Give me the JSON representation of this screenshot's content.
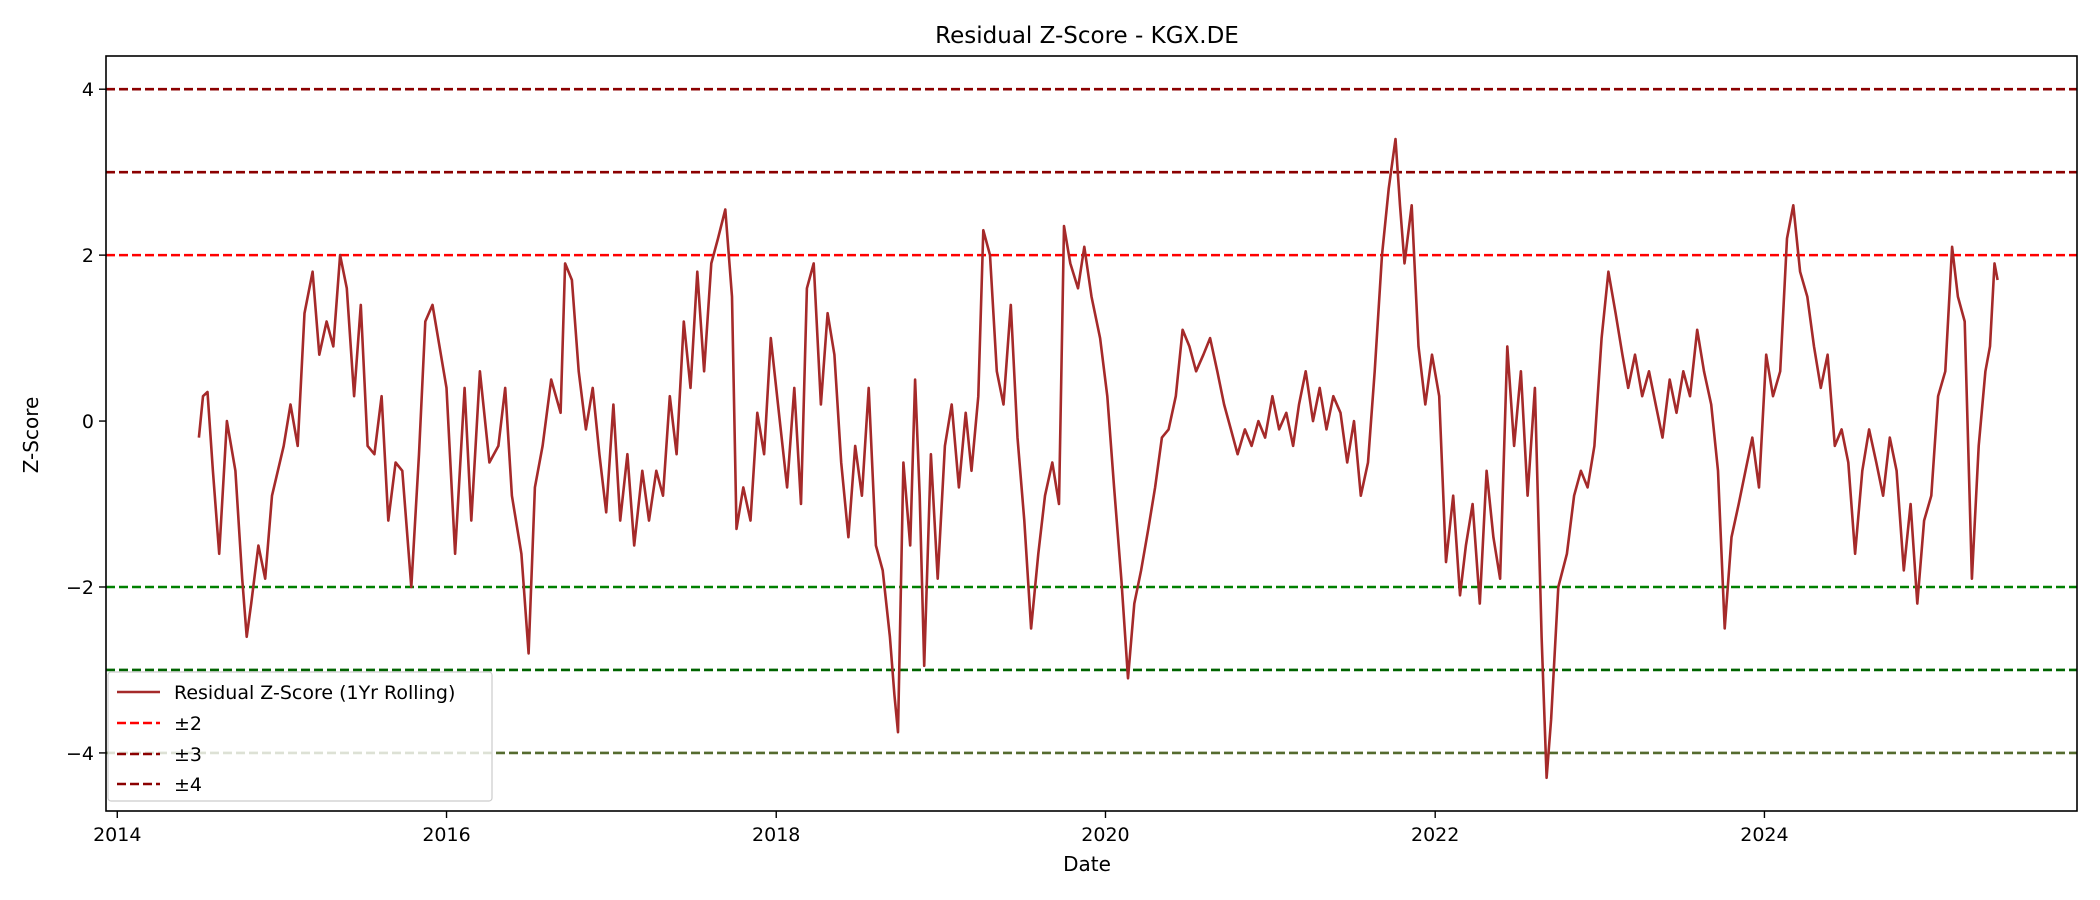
{
  "chart_data": {
    "type": "line",
    "title": "Residual Z-Score - KGX.DE",
    "xlabel": "Date",
    "ylabel": "Z-Score",
    "xlim": [
      "2013-12-07",
      "2025-11-24"
    ],
    "ylim": [
      -4.7,
      4.4
    ],
    "x_ticks": [
      "2014",
      "2016",
      "2018",
      "2020",
      "2022",
      "2024"
    ],
    "y_ticks": [
      {
        "value": 4,
        "label": "4"
      },
      {
        "value": 2,
        "label": "2"
      },
      {
        "value": 0,
        "label": "0"
      },
      {
        "value": -2,
        "label": "−2"
      },
      {
        "value": -4,
        "label": "−4"
      }
    ],
    "grid": false,
    "legend_position": "lower-left",
    "series": [
      {
        "name": "Residual Z-Score (1Yr Rolling)",
        "color": "#a52a2a",
        "style": "solid",
        "points": [
          [
            "2014-07-01",
            -0.2
          ],
          [
            "2014-07-10",
            0.3
          ],
          [
            "2014-07-20",
            0.35
          ],
          [
            "2014-08-01",
            -0.6
          ],
          [
            "2014-08-15",
            -1.6
          ],
          [
            "2014-09-01",
            0.0
          ],
          [
            "2014-09-20",
            -0.6
          ],
          [
            "2014-10-05",
            -1.9
          ],
          [
            "2014-10-15",
            -2.6
          ],
          [
            "2014-10-25",
            -2.2
          ],
          [
            "2014-11-10",
            -1.5
          ],
          [
            "2014-11-25",
            -1.9
          ],
          [
            "2014-12-10",
            -0.9
          ],
          [
            "2015-01-05",
            -0.3
          ],
          [
            "2015-01-20",
            0.2
          ],
          [
            "2015-02-05",
            -0.3
          ],
          [
            "2015-02-20",
            1.3
          ],
          [
            "2015-03-10",
            1.8
          ],
          [
            "2015-03-25",
            0.8
          ],
          [
            "2015-04-10",
            1.2
          ],
          [
            "2015-04-25",
            0.9
          ],
          [
            "2015-05-10",
            2.0
          ],
          [
            "2015-05-25",
            1.6
          ],
          [
            "2015-06-10",
            0.3
          ],
          [
            "2015-06-25",
            1.4
          ],
          [
            "2015-07-10",
            -0.3
          ],
          [
            "2015-07-25",
            -0.4
          ],
          [
            "2015-08-10",
            0.3
          ],
          [
            "2015-08-25",
            -1.2
          ],
          [
            "2015-09-10",
            -0.5
          ],
          [
            "2015-09-25",
            -0.6
          ],
          [
            "2015-10-15",
            -2.0
          ],
          [
            "2015-11-01",
            -0.4
          ],
          [
            "2015-11-15",
            1.2
          ],
          [
            "2015-12-01",
            1.4
          ],
          [
            "2016-01-01",
            0.4
          ],
          [
            "2016-01-20",
            -1.6
          ],
          [
            "2016-02-10",
            0.4
          ],
          [
            "2016-02-25",
            -1.2
          ],
          [
            "2016-03-15",
            0.6
          ],
          [
            "2016-04-05",
            -0.5
          ],
          [
            "2016-04-25",
            -0.3
          ],
          [
            "2016-05-10",
            0.4
          ],
          [
            "2016-05-25",
            -0.9
          ],
          [
            "2016-06-15",
            -1.6
          ],
          [
            "2016-07-01",
            -2.8
          ],
          [
            "2016-07-15",
            -0.8
          ],
          [
            "2016-08-01",
            -0.3
          ],
          [
            "2016-08-20",
            0.5
          ],
          [
            "2016-09-10",
            0.1
          ],
          [
            "2016-09-20",
            1.9
          ],
          [
            "2016-10-05",
            1.7
          ],
          [
            "2016-10-20",
            0.6
          ],
          [
            "2016-11-05",
            -0.1
          ],
          [
            "2016-11-20",
            0.4
          ],
          [
            "2016-12-05",
            -0.4
          ],
          [
            "2016-12-20",
            -1.1
          ],
          [
            "2017-01-05",
            0.2
          ],
          [
            "2017-01-20",
            -1.2
          ],
          [
            "2017-02-05",
            -0.4
          ],
          [
            "2017-02-20",
            -1.5
          ],
          [
            "2017-03-10",
            -0.6
          ],
          [
            "2017-03-25",
            -1.2
          ],
          [
            "2017-04-10",
            -0.6
          ],
          [
            "2017-04-25",
            -0.9
          ],
          [
            "2017-05-10",
            0.3
          ],
          [
            "2017-05-25",
            -0.4
          ],
          [
            "2017-06-10",
            1.2
          ],
          [
            "2017-06-25",
            0.4
          ],
          [
            "2017-07-10",
            1.8
          ],
          [
            "2017-07-25",
            0.6
          ],
          [
            "2017-08-10",
            1.9
          ],
          [
            "2017-08-25",
            2.2
          ],
          [
            "2017-09-10",
            2.55
          ],
          [
            "2017-09-25",
            1.5
          ],
          [
            "2017-10-05",
            -1.3
          ],
          [
            "2017-10-20",
            -0.8
          ],
          [
            "2017-11-05",
            -1.2
          ],
          [
            "2017-11-20",
            0.1
          ],
          [
            "2017-12-05",
            -0.4
          ],
          [
            "2017-12-20",
            1.0
          ],
          [
            "2018-01-05",
            0.2
          ],
          [
            "2018-01-25",
            -0.8
          ],
          [
            "2018-02-10",
            0.4
          ],
          [
            "2018-02-25",
            -1.0
          ],
          [
            "2018-03-10",
            1.6
          ],
          [
            "2018-03-25",
            1.9
          ],
          [
            "2018-04-10",
            0.2
          ],
          [
            "2018-04-25",
            1.3
          ],
          [
            "2018-05-10",
            0.8
          ],
          [
            "2018-05-25",
            -0.5
          ],
          [
            "2018-06-10",
            -1.4
          ],
          [
            "2018-06-25",
            -0.3
          ],
          [
            "2018-07-10",
            -0.9
          ],
          [
            "2018-07-25",
            0.4
          ],
          [
            "2018-08-10",
            -1.5
          ],
          [
            "2018-08-25",
            -1.8
          ],
          [
            "2018-09-10",
            -2.6
          ],
          [
            "2018-09-20",
            -3.3
          ],
          [
            "2018-09-28",
            -3.75
          ],
          [
            "2018-10-10",
            -0.5
          ],
          [
            "2018-10-25",
            -1.5
          ],
          [
            "2018-11-05",
            0.5
          ],
          [
            "2018-11-15",
            -0.9
          ],
          [
            "2018-11-25",
            -2.95
          ],
          [
            "2018-12-10",
            -0.4
          ],
          [
            "2018-12-25",
            -1.9
          ],
          [
            "2019-01-10",
            -0.3
          ],
          [
            "2019-01-25",
            0.2
          ],
          [
            "2019-02-10",
            -0.8
          ],
          [
            "2019-02-25",
            0.1
          ],
          [
            "2019-03-10",
            -0.6
          ],
          [
            "2019-03-25",
            0.3
          ],
          [
            "2019-04-05",
            2.3
          ],
          [
            "2019-04-20",
            2.0
          ],
          [
            "2019-05-05",
            0.6
          ],
          [
            "2019-05-20",
            0.2
          ],
          [
            "2019-06-05",
            1.4
          ],
          [
            "2019-06-20",
            -0.2
          ],
          [
            "2019-07-05",
            -1.2
          ],
          [
            "2019-07-20",
            -2.5
          ],
          [
            "2019-08-05",
            -1.6
          ],
          [
            "2019-08-20",
            -0.9
          ],
          [
            "2019-09-05",
            -0.5
          ],
          [
            "2019-09-20",
            -1.0
          ],
          [
            "2019-10-01",
            2.35
          ],
          [
            "2019-10-15",
            1.9
          ],
          [
            "2019-11-01",
            1.6
          ],
          [
            "2019-11-15",
            2.1
          ],
          [
            "2019-12-01",
            1.5
          ],
          [
            "2019-12-20",
            1.0
          ],
          [
            "2020-01-05",
            0.3
          ],
          [
            "2020-01-20",
            -0.8
          ],
          [
            "2020-02-05",
            -1.9
          ],
          [
            "2020-02-20",
            -3.1
          ],
          [
            "2020-03-05",
            -2.2
          ],
          [
            "2020-03-20",
            -1.8
          ],
          [
            "2020-04-05",
            -1.3
          ],
          [
            "2020-04-20",
            -0.8
          ],
          [
            "2020-05-05",
            -0.2
          ],
          [
            "2020-05-20",
            -0.1
          ],
          [
            "2020-06-05",
            0.3
          ],
          [
            "2020-06-20",
            1.1
          ],
          [
            "2020-07-05",
            0.9
          ],
          [
            "2020-07-20",
            0.6
          ],
          [
            "2020-08-05",
            0.8
          ],
          [
            "2020-08-20",
            1.0
          ],
          [
            "2020-09-05",
            0.6
          ],
          [
            "2020-09-20",
            0.2
          ],
          [
            "2020-10-05",
            -0.1
          ],
          [
            "2020-10-20",
            -0.4
          ],
          [
            "2020-11-05",
            -0.1
          ],
          [
            "2020-11-20",
            -0.3
          ],
          [
            "2020-12-05",
            0.0
          ],
          [
            "2020-12-20",
            -0.2
          ],
          [
            "2021-01-05",
            0.3
          ],
          [
            "2021-01-20",
            -0.1
          ],
          [
            "2021-02-05",
            0.1
          ],
          [
            "2021-02-20",
            -0.3
          ],
          [
            "2021-03-05",
            0.2
          ],
          [
            "2021-03-20",
            0.6
          ],
          [
            "2021-04-05",
            0.0
          ],
          [
            "2021-04-20",
            0.4
          ],
          [
            "2021-05-05",
            -0.1
          ],
          [
            "2021-05-20",
            0.3
          ],
          [
            "2021-06-05",
            0.1
          ],
          [
            "2021-06-20",
            -0.5
          ],
          [
            "2021-07-05",
            0.0
          ],
          [
            "2021-07-20",
            -0.9
          ],
          [
            "2021-08-05",
            -0.5
          ],
          [
            "2021-08-20",
            0.6
          ],
          [
            "2021-09-05",
            2.0
          ],
          [
            "2021-09-20",
            2.8
          ],
          [
            "2021-10-05",
            3.4
          ],
          [
            "2021-10-15",
            2.6
          ],
          [
            "2021-10-25",
            1.9
          ],
          [
            "2021-11-10",
            2.6
          ],
          [
            "2021-11-25",
            0.9
          ],
          [
            "2021-12-10",
            0.2
          ],
          [
            "2021-12-25",
            0.8
          ],
          [
            "2022-01-10",
            0.3
          ],
          [
            "2022-01-25",
            -1.7
          ],
          [
            "2022-02-10",
            -0.9
          ],
          [
            "2022-02-25",
            -2.1
          ],
          [
            "2022-03-10",
            -1.5
          ],
          [
            "2022-03-25",
            -1.0
          ],
          [
            "2022-04-10",
            -2.2
          ],
          [
            "2022-04-25",
            -0.6
          ],
          [
            "2022-05-10",
            -1.4
          ],
          [
            "2022-05-25",
            -1.9
          ],
          [
            "2022-06-10",
            0.9
          ],
          [
            "2022-06-25",
            -0.3
          ],
          [
            "2022-07-10",
            0.6
          ],
          [
            "2022-07-25",
            -0.9
          ],
          [
            "2022-08-10",
            0.4
          ],
          [
            "2022-08-25",
            -2.6
          ],
          [
            "2022-09-05",
            -4.3
          ],
          [
            "2022-09-15",
            -3.6
          ],
          [
            "2022-10-01",
            -2.0
          ],
          [
            "2022-10-20",
            -1.6
          ],
          [
            "2022-11-05",
            -0.9
          ],
          [
            "2022-11-20",
            -0.6
          ],
          [
            "2022-12-05",
            -0.8
          ],
          [
            "2022-12-20",
            -0.3
          ],
          [
            "2023-01-05",
            1.0
          ],
          [
            "2023-01-20",
            1.8
          ],
          [
            "2023-02-05",
            1.3
          ],
          [
            "2023-02-20",
            0.8
          ],
          [
            "2023-03-05",
            0.4
          ],
          [
            "2023-03-20",
            0.8
          ],
          [
            "2023-04-05",
            0.3
          ],
          [
            "2023-04-20",
            0.6
          ],
          [
            "2023-05-05",
            0.2
          ],
          [
            "2023-05-20",
            -0.2
          ],
          [
            "2023-06-05",
            0.5
          ],
          [
            "2023-06-20",
            0.1
          ],
          [
            "2023-07-05",
            0.6
          ],
          [
            "2023-07-20",
            0.3
          ],
          [
            "2023-08-05",
            1.1
          ],
          [
            "2023-08-20",
            0.6
          ],
          [
            "2023-09-05",
            0.2
          ],
          [
            "2023-09-20",
            -0.6
          ],
          [
            "2023-10-05",
            -2.5
          ],
          [
            "2023-10-20",
            -1.4
          ],
          [
            "2023-11-05",
            -1.0
          ],
          [
            "2023-11-20",
            -0.6
          ],
          [
            "2023-12-05",
            -0.2
          ],
          [
            "2023-12-20",
            -0.8
          ],
          [
            "2024-01-05",
            0.8
          ],
          [
            "2024-01-20",
            0.3
          ],
          [
            "2024-02-05",
            0.6
          ],
          [
            "2024-02-20",
            2.2
          ],
          [
            "2024-03-05",
            2.6
          ],
          [
            "2024-03-20",
            1.8
          ],
          [
            "2024-04-05",
            1.5
          ],
          [
            "2024-04-20",
            0.9
          ],
          [
            "2024-05-05",
            0.4
          ],
          [
            "2024-05-20",
            0.8
          ],
          [
            "2024-06-05",
            -0.3
          ],
          [
            "2024-06-20",
            -0.1
          ],
          [
            "2024-07-05",
            -0.5
          ],
          [
            "2024-07-20",
            -1.6
          ],
          [
            "2024-08-05",
            -0.6
          ],
          [
            "2024-08-20",
            -0.1
          ],
          [
            "2024-09-05",
            -0.5
          ],
          [
            "2024-09-20",
            -0.9
          ],
          [
            "2024-10-05",
            -0.2
          ],
          [
            "2024-10-20",
            -0.6
          ],
          [
            "2024-11-05",
            -1.8
          ],
          [
            "2024-11-20",
            -1.0
          ],
          [
            "2024-12-05",
            -2.2
          ],
          [
            "2024-12-20",
            -1.2
          ],
          [
            "2025-01-05",
            -0.9
          ],
          [
            "2025-01-20",
            0.3
          ],
          [
            "2025-02-05",
            0.6
          ],
          [
            "2025-02-20",
            2.1
          ],
          [
            "2025-03-05",
            1.5
          ],
          [
            "2025-03-20",
            1.2
          ],
          [
            "2025-04-05",
            -1.9
          ],
          [
            "2025-04-20",
            -0.3
          ],
          [
            "2025-05-05",
            0.6
          ],
          [
            "2025-05-15",
            0.9
          ],
          [
            "2025-05-25",
            1.9
          ],
          [
            "2025-06-01",
            1.7
          ]
        ]
      },
      {
        "name": "±2",
        "color": "#ff0000",
        "style": "dashed",
        "values": [
          2,
          -2
        ]
      },
      {
        "name": "±3",
        "color": "#8b0000",
        "style": "dashed",
        "values": [
          3,
          -3
        ]
      },
      {
        "name": "±4",
        "color": "#8b0000",
        "style": "dashed",
        "values": [
          4,
          -4
        ]
      }
    ],
    "negative_threshold_colors": {
      "-2": "#008000",
      "-3": "#006400",
      "-4": "#556b2f"
    }
  }
}
